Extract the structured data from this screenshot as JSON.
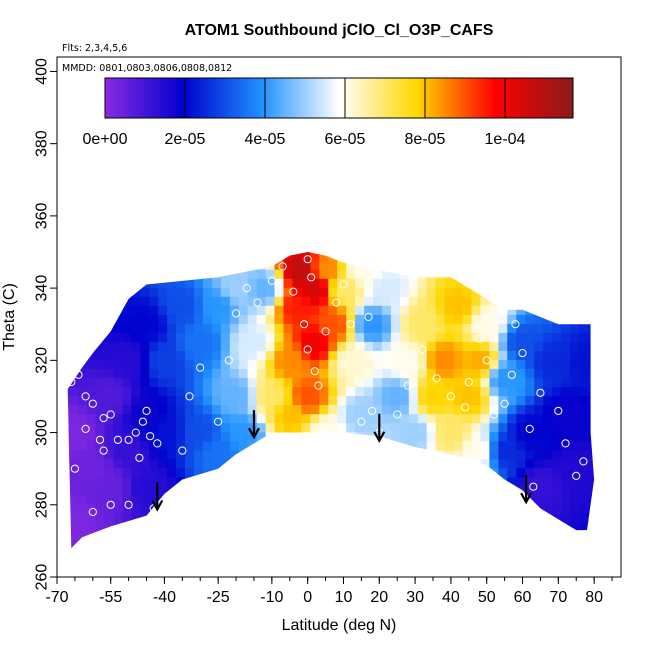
{
  "chart_data": {
    "type": "heatmap",
    "title": "ATOM1 Southbound jClO_Cl_O3P_CAFS",
    "flights_note": "Flts: 2,3,4,5,6",
    "dates_note": "MMDD: 0801,0803,0806,0808,0812",
    "xlabel": "Latitude (deg N)",
    "ylabel": "Theta (C)",
    "xlim": [
      -70,
      85
    ],
    "ylim": [
      260,
      405
    ],
    "xticks": [
      -70,
      -55,
      -40,
      -25,
      -10,
      0,
      10,
      20,
      30,
      40,
      50,
      60,
      70,
      80
    ],
    "xtick_labels": [
      "-70",
      "-55",
      "-40",
      "-25",
      "-10",
      "0",
      "10",
      "20",
      "30",
      "40",
      "50",
      "60",
      "70",
      "80"
    ],
    "yticks": [
      260,
      280,
      300,
      320,
      340,
      360,
      380,
      400
    ],
    "ytick_labels": [
      "260",
      "280",
      "300",
      "320",
      "340",
      "360",
      "380",
      "400"
    ],
    "colorbar": {
      "range": [
        0,
        0.000117
      ],
      "labels": [
        "0e+00",
        "2e-05",
        "4e-05",
        "6e-05",
        "8e-05",
        "1e-04"
      ],
      "label_values": [
        0,
        2e-05,
        4e-05,
        6e-05,
        8e-05,
        0.0001
      ],
      "colors": [
        "#8a2be2",
        "#0000cd",
        "#1e90ff",
        "#ffffff",
        "#ffd700",
        "#ff0000",
        "#8b1a1a"
      ]
    },
    "arrows_at_latitude": [
      -42,
      -15,
      20,
      61
    ],
    "arrow_theta": [
      [
        -42,
        279
      ],
      [
        -15,
        299
      ],
      [
        20,
        298
      ],
      [
        61,
        281
      ]
    ],
    "bottom_boundary": [
      [
        -66,
        268
      ],
      [
        -63,
        271
      ],
      [
        -55,
        274
      ],
      [
        -45,
        277
      ],
      [
        -40,
        283
      ],
      [
        -35,
        287
      ],
      [
        -25,
        290
      ],
      [
        -20,
        294
      ],
      [
        -15,
        297
      ],
      [
        -10,
        300
      ],
      [
        0,
        300
      ],
      [
        10,
        300
      ],
      [
        20,
        299
      ],
      [
        30,
        296
      ],
      [
        40,
        294
      ],
      [
        50,
        291
      ],
      [
        55,
        287
      ],
      [
        60,
        284
      ],
      [
        65,
        279
      ],
      [
        70,
        276
      ],
      [
        75,
        273
      ],
      [
        78,
        273
      ]
    ],
    "top_boundary": [
      [
        -67,
        312
      ],
      [
        -63,
        318
      ],
      [
        -60,
        322
      ],
      [
        -55,
        328
      ],
      [
        -50,
        337
      ],
      [
        -45,
        341
      ],
      [
        -35,
        342
      ],
      [
        -25,
        343
      ],
      [
        -20,
        344
      ],
      [
        -10,
        346
      ],
      [
        -5,
        349
      ],
      [
        0,
        350
      ],
      [
        5,
        349
      ],
      [
        10,
        347
      ],
      [
        20,
        345
      ],
      [
        30,
        343
      ],
      [
        40,
        343
      ],
      [
        45,
        340
      ],
      [
        50,
        337
      ],
      [
        55,
        334
      ],
      [
        60,
        334
      ],
      [
        65,
        332
      ],
      [
        70,
        330
      ],
      [
        75,
        330
      ],
      [
        79,
        330
      ],
      [
        79,
        300
      ],
      [
        80,
        287
      ]
    ],
    "field_anchors": [
      [
        -65,
        275,
        2e-06
      ],
      [
        -65,
        300,
        2e-06
      ],
      [
        -60,
        290,
        4e-06
      ],
      [
        -55,
        285,
        5e-06
      ],
      [
        -55,
        310,
        8e-06
      ],
      [
        -50,
        295,
        1.2e-05
      ],
      [
        -50,
        320,
        1.4e-05
      ],
      [
        -45,
        285,
        1.4e-05
      ],
      [
        -45,
        305,
        1.8e-05
      ],
      [
        -45,
        330,
        2e-05
      ],
      [
        -40,
        300,
        2.2e-05
      ],
      [
        -40,
        320,
        2.8e-05
      ],
      [
        -35,
        335,
        3e-05
      ],
      [
        -30,
        300,
        3e-05
      ],
      [
        -30,
        325,
        3.5e-05
      ],
      [
        -25,
        295,
        3.5e-05
      ],
      [
        -25,
        335,
        4e-05
      ],
      [
        -20,
        310,
        4.5e-05
      ],
      [
        -20,
        340,
        5e-05
      ],
      [
        -15,
        325,
        5.5e-05
      ],
      [
        -12,
        340,
        4.5e-05
      ],
      [
        -10,
        310,
        7e-05
      ],
      [
        -5,
        305,
        8e-05
      ],
      [
        -5,
        320,
        8.5e-05
      ],
      [
        -3,
        335,
        9.5e-05
      ],
      [
        -2,
        345,
        0.000108
      ],
      [
        2,
        340,
        0.000105
      ],
      [
        2,
        325,
        0.0001
      ],
      [
        0,
        310,
        9e-05
      ],
      [
        5,
        300,
        6e-05
      ],
      [
        7,
        330,
        9e-05
      ],
      [
        5,
        345,
        8.5e-05
      ],
      [
        10,
        340,
        7e-05
      ],
      [
        12,
        320,
        6.2e-05
      ],
      [
        15,
        305,
        5e-05
      ],
      [
        18,
        330,
        4e-05
      ],
      [
        22,
        340,
        5.5e-05
      ],
      [
        25,
        310,
        4.5e-05
      ],
      [
        28,
        320,
        6e-05
      ],
      [
        32,
        330,
        7e-05
      ],
      [
        35,
        310,
        7.8e-05
      ],
      [
        38,
        320,
        8.5e-05
      ],
      [
        40,
        300,
        7e-05
      ],
      [
        42,
        335,
        8e-05
      ],
      [
        45,
        310,
        8e-05
      ],
      [
        48,
        320,
        8.2e-05
      ],
      [
        48,
        295,
        6e-05
      ],
      [
        50,
        330,
        6e-05
      ],
      [
        55,
        315,
        4e-05
      ],
      [
        55,
        295,
        2.5e-05
      ],
      [
        60,
        325,
        3e-05
      ],
      [
        62,
        300,
        2e-05
      ],
      [
        65,
        285,
        1.2e-05
      ],
      [
        68,
        320,
        2.5e-05
      ],
      [
        72,
        305,
        1.8e-05
      ],
      [
        75,
        290,
        1.5e-05
      ],
      [
        78,
        320,
        2.2e-05
      ],
      [
        -18,
        300,
        4e-05
      ],
      [
        30,
        300,
        5e-05
      ],
      [
        15,
        345,
        6e-05
      ]
    ],
    "sample_points": [
      [
        -66,
        314
      ],
      [
        -64,
        316
      ],
      [
        -62,
        310
      ],
      [
        -60,
        308
      ],
      [
        -57,
        304
      ],
      [
        -55,
        305
      ],
      [
        -58,
        298
      ],
      [
        -57,
        295
      ],
      [
        -53,
        298
      ],
      [
        -50,
        298
      ],
      [
        -48,
        300
      ],
      [
        -46,
        303
      ],
      [
        -45,
        306
      ],
      [
        -44,
        299
      ],
      [
        -42,
        297
      ],
      [
        -47,
        293
      ],
      [
        -60,
        278
      ],
      [
        -55,
        280
      ],
      [
        -50,
        280
      ],
      [
        -43,
        279
      ],
      [
        -38,
        283
      ],
      [
        -35,
        295
      ],
      [
        -33,
        310
      ],
      [
        -30,
        318
      ],
      [
        -25,
        303
      ],
      [
        -22,
        320
      ],
      [
        -20,
        333
      ],
      [
        -17,
        340
      ],
      [
        -14,
        336
      ],
      [
        -10,
        342
      ],
      [
        -7,
        346
      ],
      [
        -4,
        339
      ],
      [
        0,
        348
      ],
      [
        1,
        343
      ],
      [
        -1,
        330
      ],
      [
        0,
        323
      ],
      [
        2,
        317
      ],
      [
        3,
        313
      ],
      [
        5,
        328
      ],
      [
        8,
        336
      ],
      [
        10,
        341
      ],
      [
        12,
        330
      ],
      [
        15,
        324
      ],
      [
        17,
        332
      ],
      [
        19,
        321
      ],
      [
        18,
        306
      ],
      [
        15,
        303
      ],
      [
        8,
        298
      ],
      [
        20,
        300
      ],
      [
        25,
        305
      ],
      [
        28,
        313
      ],
      [
        30,
        318
      ],
      [
        32,
        323
      ],
      [
        36,
        315
      ],
      [
        40,
        310
      ],
      [
        44,
        307
      ],
      [
        45,
        314
      ],
      [
        48,
        326
      ],
      [
        50,
        320
      ],
      [
        52,
        305
      ],
      [
        55,
        308
      ],
      [
        57,
        316
      ],
      [
        60,
        322
      ],
      [
        58,
        330
      ],
      [
        62,
        301
      ],
      [
        65,
        311
      ],
      [
        70,
        306
      ],
      [
        72,
        297
      ],
      [
        75,
        288
      ],
      [
        77,
        292
      ],
      [
        63,
        285
      ],
      [
        50,
        288
      ],
      [
        40,
        290
      ],
      [
        30,
        292
      ],
      [
        -65,
        290
      ],
      [
        -62,
        301
      ]
    ]
  }
}
